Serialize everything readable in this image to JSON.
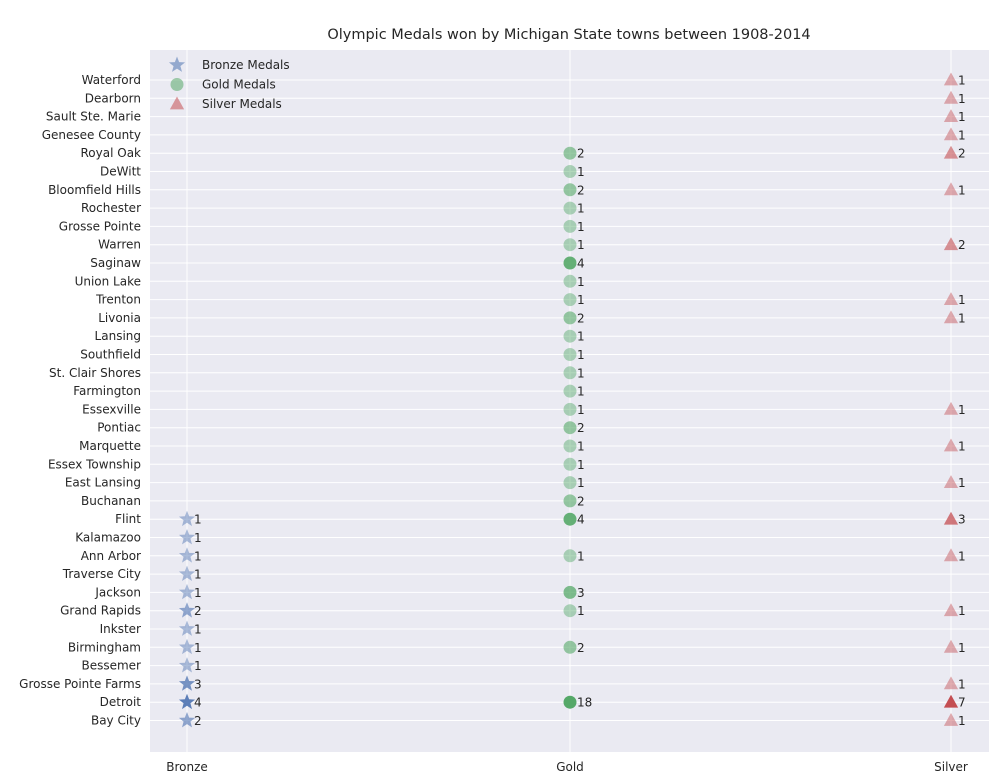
{
  "chart_data": {
    "type": "scatter",
    "title": "Olympic Medals won by Michigan State towns between 1908-2014",
    "xlabel": "",
    "ylabel": "",
    "grid": true,
    "legend_position": "top-left",
    "categories_x": [
      "Bronze",
      "Gold",
      "Silver"
    ],
    "towns": [
      "Waterford",
      "Dearborn",
      "Sault Ste. Marie",
      "Genesee County",
      "Royal Oak",
      "DeWitt",
      "Bloomfield Hills",
      "Rochester",
      "Grosse Pointe",
      "Warren",
      "Saginaw",
      "Union Lake",
      "Trenton",
      "Livonia",
      "Lansing",
      "Southfield",
      "St. Clair Shores",
      "Farmington",
      "Essexville",
      "Pontiac",
      "Marquette",
      "Essex Township",
      "East Lansing",
      "Buchanan",
      "Flint",
      "Kalamazoo",
      "Ann Arbor",
      "Traverse City",
      "Jackson",
      "Grand Rapids",
      "Inkster",
      "Birmingham",
      "Bessemer",
      "Grosse Pointe Farms",
      "Detroit",
      "Bay City"
    ],
    "series": [
      {
        "name": "Bronze Medals",
        "marker": "star",
        "color": "#4c72b0",
        "points": [
          {
            "town": "Flint",
            "value": 1
          },
          {
            "town": "Kalamazoo",
            "value": 1
          },
          {
            "town": "Ann Arbor",
            "value": 1
          },
          {
            "town": "Traverse City",
            "value": 1
          },
          {
            "town": "Jackson",
            "value": 1
          },
          {
            "town": "Grand Rapids",
            "value": 2
          },
          {
            "town": "Inkster",
            "value": 1
          },
          {
            "town": "Birmingham",
            "value": 1
          },
          {
            "town": "Bessemer",
            "value": 1
          },
          {
            "town": "Grosse Pointe Farms",
            "value": 3
          },
          {
            "town": "Detroit",
            "value": 4
          },
          {
            "town": "Bay City",
            "value": 2
          }
        ]
      },
      {
        "name": "Gold Medals",
        "marker": "circle",
        "color": "#55a868",
        "points": [
          {
            "town": "Royal Oak",
            "value": 2
          },
          {
            "town": "DeWitt",
            "value": 1
          },
          {
            "town": "Bloomfield Hills",
            "value": 2
          },
          {
            "town": "Rochester",
            "value": 1
          },
          {
            "town": "Grosse Pointe",
            "value": 1
          },
          {
            "town": "Warren",
            "value": 1
          },
          {
            "town": "Saginaw",
            "value": 4
          },
          {
            "town": "Union Lake",
            "value": 1
          },
          {
            "town": "Trenton",
            "value": 1
          },
          {
            "town": "Livonia",
            "value": 2
          },
          {
            "town": "Lansing",
            "value": 1
          },
          {
            "town": "Southfield",
            "value": 1
          },
          {
            "town": "St. Clair Shores",
            "value": 1
          },
          {
            "town": "Farmington",
            "value": 1
          },
          {
            "town": "Essexville",
            "value": 1
          },
          {
            "town": "Pontiac",
            "value": 2
          },
          {
            "town": "Marquette",
            "value": 1
          },
          {
            "town": "Essex Township",
            "value": 1
          },
          {
            "town": "East Lansing",
            "value": 1
          },
          {
            "town": "Buchanan",
            "value": 2
          },
          {
            "town": "Flint",
            "value": 4
          },
          {
            "town": "Ann Arbor",
            "value": 1
          },
          {
            "town": "Jackson",
            "value": 3
          },
          {
            "town": "Grand Rapids",
            "value": 1
          },
          {
            "town": "Birmingham",
            "value": 2
          },
          {
            "town": "Detroit",
            "value": 18
          }
        ]
      },
      {
        "name": "Silver Medals",
        "marker": "triangle",
        "color": "#c44e52",
        "points": [
          {
            "town": "Waterford",
            "value": 1
          },
          {
            "town": "Dearborn",
            "value": 1
          },
          {
            "town": "Sault Ste. Marie",
            "value": 1
          },
          {
            "town": "Genesee County",
            "value": 1
          },
          {
            "town": "Royal Oak",
            "value": 2
          },
          {
            "town": "Bloomfield Hills",
            "value": 1
          },
          {
            "town": "Warren",
            "value": 2
          },
          {
            "town": "Trenton",
            "value": 1
          },
          {
            "town": "Livonia",
            "value": 1
          },
          {
            "town": "Essexville",
            "value": 1
          },
          {
            "town": "Marquette",
            "value": 1
          },
          {
            "town": "East Lansing",
            "value": 1
          },
          {
            "town": "Flint",
            "value": 3
          },
          {
            "town": "Ann Arbor",
            "value": 1
          },
          {
            "town": "Grand Rapids",
            "value": 1
          },
          {
            "town": "Birmingham",
            "value": 1
          },
          {
            "town": "Grosse Pointe Farms",
            "value": 1
          },
          {
            "town": "Detroit",
            "value": 7
          },
          {
            "town": "Bay City",
            "value": 1
          }
        ]
      }
    ],
    "legend_order": [
      "Bronze Medals",
      "Gold Medals",
      "Silver Medals"
    ]
  },
  "colors": {
    "plot_background": "#eaeaf2",
    "grid": "#ffffff"
  }
}
